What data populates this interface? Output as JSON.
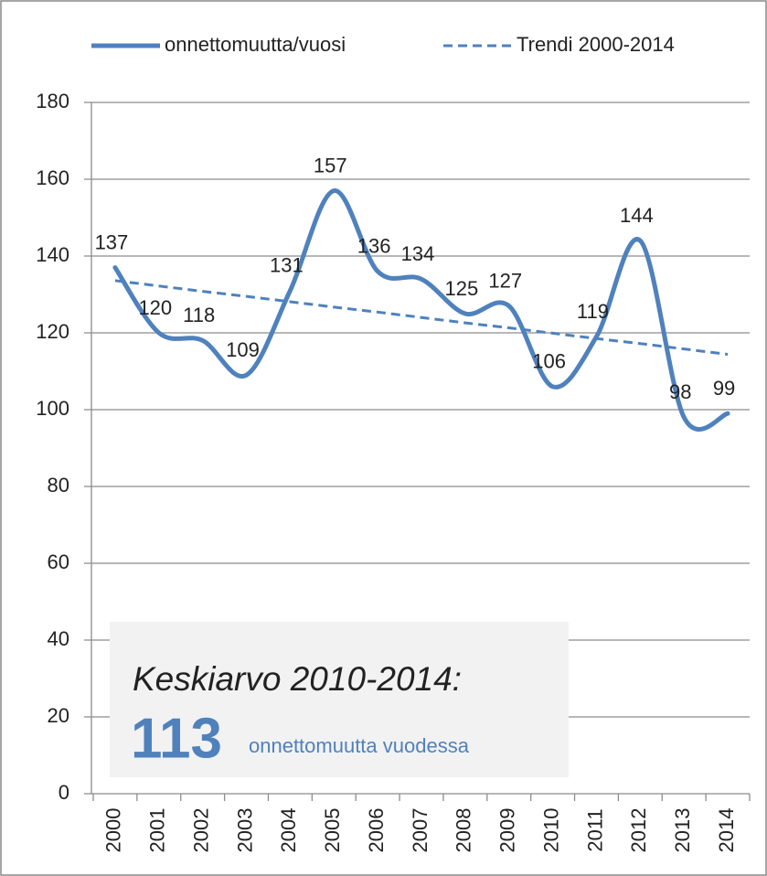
{
  "chart_data": {
    "type": "line",
    "categories": [
      "2000",
      "2001",
      "2002",
      "2003",
      "2004",
      "2005",
      "2006",
      "2007",
      "2008",
      "2009",
      "2010",
      "2011",
      "2012",
      "2013",
      "2014"
    ],
    "series": [
      {
        "name": "onnettomuutta/vuosi",
        "color": "#4f81bd",
        "dash": false,
        "data_labels": true,
        "values": [
          137,
          120,
          118,
          109,
          131,
          157,
          136,
          134,
          125,
          127,
          106,
          119,
          144,
          98,
          99
        ]
      },
      {
        "name": "Trendi 2000-2014",
        "color": "#4f81bd",
        "dash": true,
        "data_labels": false,
        "values": [
          133.6,
          132.2,
          130.8,
          129.5,
          128.1,
          126.7,
          125.4,
          124.0,
          122.6,
          121.3,
          119.9,
          118.5,
          117.2,
          115.8,
          114.4
        ]
      }
    ],
    "ylim": [
      0,
      180
    ],
    "yticks": [
      0,
      20,
      40,
      60,
      80,
      100,
      120,
      140,
      160,
      180
    ],
    "grid": true,
    "legend": "top",
    "annotation": {
      "title": "Keskiarvo 2010-2014:",
      "value": 113,
      "text": "onnettomuutta vuodessa"
    }
  }
}
